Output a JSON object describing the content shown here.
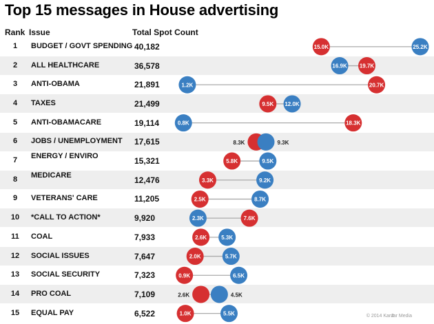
{
  "title": "Top 15 messages in House advertising",
  "headers": {
    "rank": "Rank",
    "issue": "Issue",
    "total": "Total Spot Count"
  },
  "footer": {
    "copyright": "© 2014 Kantar Media",
    "page": "2"
  },
  "colors": {
    "red": "#d63031",
    "blue": "#3a7fc2",
    "line": "#aaaaaa",
    "alt_row": "#eeeeee"
  },
  "chart_data": {
    "type": "dumbbell",
    "title": "Top 15 messages in House advertising",
    "xlim": [
      0,
      26.5
    ],
    "unit": "K spots",
    "series": [
      {
        "name": "Red",
        "color": "#d63031",
        "values": [
          15.0,
          19.7,
          20.7,
          9.5,
          18.3,
          8.3,
          5.8,
          3.3,
          2.5,
          7.6,
          2.6,
          2.0,
          0.9,
          2.6,
          1.0
        ]
      },
      {
        "name": "Blue",
        "color": "#3a7fc2",
        "values": [
          25.2,
          16.9,
          1.2,
          12.0,
          0.8,
          9.3,
          9.5,
          9.2,
          8.7,
          2.3,
          5.3,
          5.7,
          6.5,
          4.5,
          5.5
        ]
      }
    ],
    "rows": [
      {
        "rank": "1",
        "issue": "BUDGET / GOVT SPENDING",
        "total": "40,182",
        "red_label": "15.0K",
        "blue_label": "25.2K"
      },
      {
        "rank": "2",
        "issue": "ALL HEALTHCARE",
        "total": "36,578",
        "red_label": "19.7K",
        "blue_label": "16.9K"
      },
      {
        "rank": "3",
        "issue": "ANTI-OBAMA",
        "total": "21,891",
        "red_label": "20.7K",
        "blue_label": "1.2K"
      },
      {
        "rank": "4",
        "issue": "TAXES",
        "total": "21,499",
        "red_label": "9.5K",
        "blue_label": "12.0K"
      },
      {
        "rank": "5",
        "issue": "ANTI-OBAMACARE",
        "total": "19,114",
        "red_label": "18.3K",
        "blue_label": "0.8K"
      },
      {
        "rank": "6",
        "issue": "JOBS / UNEMPLOYMENT",
        "total": "17,615",
        "red_label": "8.3K",
        "blue_label": "9.3K"
      },
      {
        "rank": "7",
        "issue": "ENERGY / ENVIRO",
        "total": "15,321",
        "red_label": "5.8K",
        "blue_label": "9.5K"
      },
      {
        "rank": "8",
        "issue": "MEDICARE",
        "total": "12,476",
        "red_label": "3.3K",
        "blue_label": "9.2K"
      },
      {
        "rank": "9",
        "issue": "VETERANS' CARE",
        "total": "11,205",
        "red_label": "2.5K",
        "blue_label": "8.7K"
      },
      {
        "rank": "10",
        "issue": "*CALL TO ACTION*",
        "total": "9,920",
        "red_label": "7.6K",
        "blue_label": "2.3K"
      },
      {
        "rank": "11",
        "issue": "COAL",
        "total": "7,933",
        "red_label": "2.6K",
        "blue_label": "5.3K"
      },
      {
        "rank": "12",
        "issue": "SOCIAL ISSUES",
        "total": "7,647",
        "red_label": "2.0K",
        "blue_label": "5.7K"
      },
      {
        "rank": "13",
        "issue": "SOCIAL SECURITY",
        "total": "7,323",
        "red_label": "0.9K",
        "blue_label": "6.5K"
      },
      {
        "rank": "14",
        "issue": "PRO COAL",
        "total": "7,109",
        "red_label": "2.6K",
        "blue_label": "4.5K"
      },
      {
        "rank": "15",
        "issue": "EQUAL PAY",
        "total": "6,522",
        "red_label": "1.0K",
        "blue_label": "5.5K"
      }
    ]
  }
}
